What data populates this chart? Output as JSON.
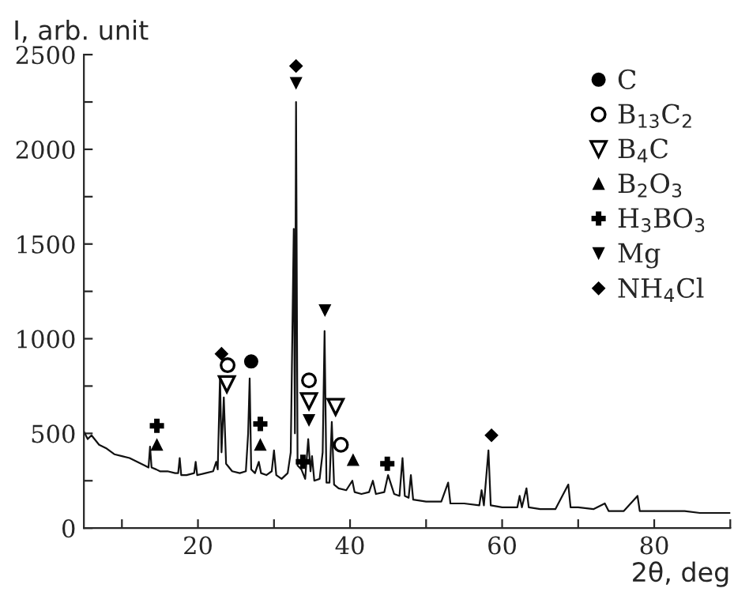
{
  "chart_data": {
    "type": "line",
    "xlabel": "2θ, deg",
    "ylabel": "I, arb. unit",
    "xlim": [
      5,
      90
    ],
    "ylim": [
      0,
      2500
    ],
    "xticks": [
      {
        "value": 10,
        "label": null
      },
      20,
      {
        "value": 30,
        "label": null
      },
      40,
      {
        "value": 50,
        "label": null
      },
      60,
      {
        "value": 70,
        "label": null
      },
      80,
      {
        "value": 90,
        "label": null
      }
    ],
    "yticks": [
      0,
      {
        "value": 250,
        "label": null
      },
      500,
      {
        "value": 750,
        "label": null
      },
      1000,
      {
        "value": 1250,
        "label": null
      },
      1500,
      {
        "value": 1750,
        "label": null
      },
      2000,
      {
        "value": 2250,
        "label": null
      },
      2500
    ],
    "grid": false,
    "legend": "top right",
    "series": [
      {
        "color": "#111111",
        "marker": "none",
        "line_style": "solid",
        "x": [
          5,
          5.5,
          6,
          7,
          8,
          9,
          10,
          11,
          12,
          13,
          13.5,
          13.7,
          13.9,
          14.5,
          15,
          16,
          17,
          17.4,
          17.6,
          17.8,
          18.5,
          19.5,
          19.7,
          19.9,
          21,
          22,
          22.4,
          22.6,
          22.9,
          23.1,
          23.4,
          23.7,
          24.5,
          25.5,
          26.3,
          26.6,
          26.8,
          27.0,
          27.5,
          28.0,
          28.3,
          29,
          29.7,
          30.0,
          30.3,
          31,
          31.8,
          32.2,
          32.6,
          32.75,
          32.9,
          33.1,
          33.6,
          34.1,
          34.5,
          34.8,
          35.0,
          35.3,
          36.0,
          36.4,
          36.65,
          36.9,
          37.3,
          37.6,
          37.9,
          38.5,
          39.5,
          40.3,
          40.6,
          41.5,
          42.5,
          43.0,
          43.4,
          44.5,
          45.0,
          45.4,
          45.8,
          46.5,
          46.9,
          47.2,
          47.7,
          48.0,
          48.3,
          50,
          52,
          52.9,
          53.2,
          55,
          57,
          57.3,
          57.6,
          58.2,
          58.5,
          60,
          62,
          62.3,
          62.6,
          63.2,
          63.5,
          65,
          67,
          68.7,
          69,
          70,
          72,
          73.5,
          74,
          76,
          77.8,
          78.1,
          80,
          82,
          84,
          86,
          88,
          90
        ],
        "values": [
          510,
          470,
          490,
          440,
          420,
          390,
          380,
          370,
          350,
          330,
          320,
          430,
          320,
          310,
          300,
          300,
          290,
          290,
          370,
          280,
          280,
          290,
          350,
          280,
          290,
          300,
          350,
          310,
          800,
          400,
          690,
          340,
          300,
          290,
          300,
          500,
          790,
          310,
          290,
          350,
          290,
          280,
          300,
          410,
          280,
          260,
          290,
          400,
          1580,
          500,
          2250,
          330,
          310,
          260,
          470,
          300,
          380,
          250,
          260,
          400,
          1040,
          240,
          240,
          560,
          230,
          210,
          200,
          250,
          190,
          180,
          190,
          250,
          180,
          190,
          280,
          230,
          180,
          170,
          370,
          170,
          160,
          280,
          150,
          140,
          140,
          240,
          130,
          130,
          120,
          200,
          120,
          410,
          120,
          110,
          110,
          170,
          110,
          210,
          110,
          100,
          100,
          230,
          110,
          110,
          100,
          130,
          90,
          90,
          170,
          90,
          90,
          90,
          90,
          80,
          80,
          80
        ]
      },
      {
        "type": "scatter",
        "name": "C",
        "color": "#000000",
        "marker": "circle",
        "x": [
          27.0
        ],
        "values": [
          880
        ]
      },
      {
        "type": "scatter",
        "name": "B$_{13}$C$_{2}$",
        "color": "#000000",
        "marker": "circle-open",
        "x": [
          23.9,
          34.6,
          38.8
        ],
        "values": [
          860,
          780,
          440
        ]
      },
      {
        "type": "scatter",
        "name": "B$_{4}$C",
        "color": "#000000",
        "marker": "triangle-down-open",
        "x": [
          23.8,
          34.6,
          38.1
        ],
        "values": [
          760,
          670,
          640
        ]
      },
      {
        "type": "scatter",
        "name": "B$_{2}$O$_{3}$",
        "color": "#000000",
        "marker": "triangle",
        "x": [
          14.6,
          28.2,
          40.4
        ],
        "values": [
          440,
          440,
          360
        ]
      },
      {
        "type": "scatter",
        "name": "H$_{3}$BO$_{3}$",
        "color": "#000000",
        "marker": "cross",
        "x": [
          14.6,
          28.2,
          33.8,
          44.9
        ],
        "values": [
          540,
          550,
          350,
          340
        ]
      },
      {
        "type": "scatter",
        "name": "Mg",
        "color": "#000000",
        "marker": "triangle-down",
        "x": [
          32.9,
          36.7,
          34.6
        ],
        "values": [
          2350,
          1150,
          570
        ]
      },
      {
        "type": "scatter",
        "name": "NH$_{4}$Cl",
        "color": "#000000",
        "marker": "diamond",
        "x": [
          32.9,
          23.1,
          58.6
        ],
        "values": [
          2440,
          920,
          490
        ]
      }
    ]
  }
}
